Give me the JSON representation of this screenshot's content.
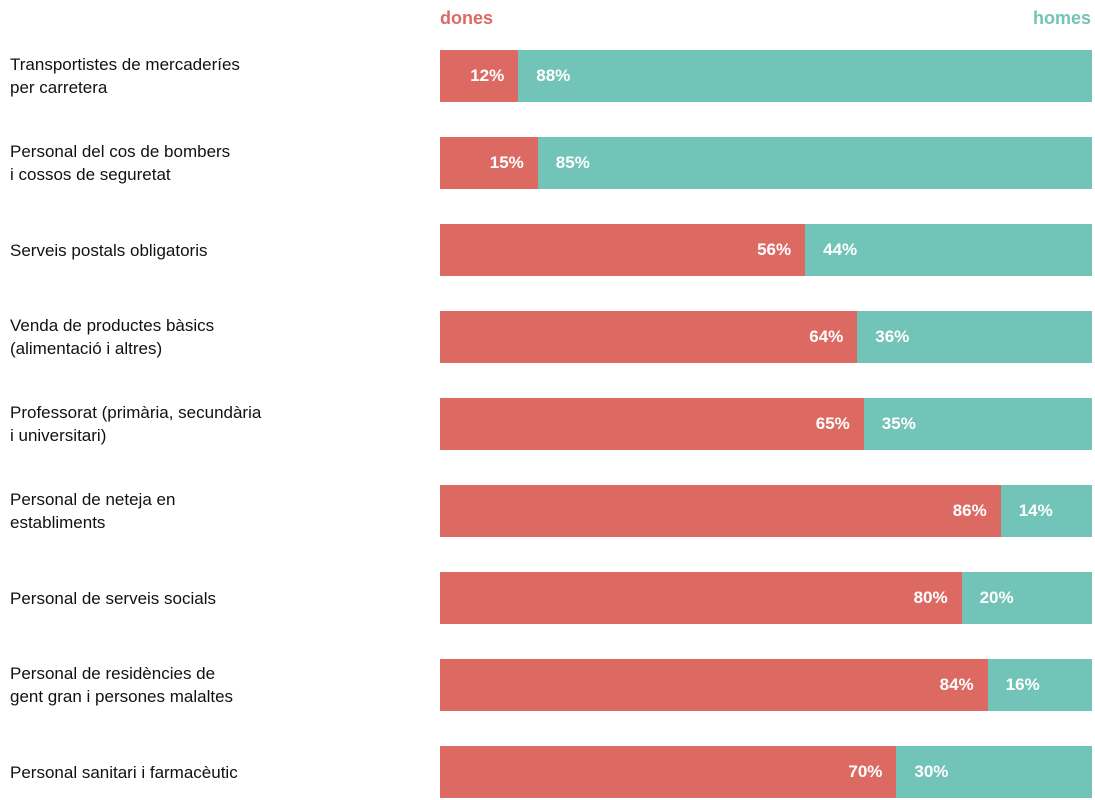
{
  "chart_data": {
    "type": "bar",
    "orientation": "horizontal",
    "stacked": true,
    "categories": [
      "Transportistes de mercaderíes\nper carretera",
      "Personal del cos de bombers\ni cossos de seguretat",
      "Serveis postals obligatoris",
      "Venda de productes bàsics\n(alimentació i altres)",
      "Professorat (primària, secundària\ni universitari)",
      "Personal de neteja en\nestabliments",
      "Personal de serveis socials",
      "Personal de residències de\ngent gran i persones malaltes",
      "Personal sanitari i farmacèutic"
    ],
    "xlim": [
      0,
      100
    ],
    "series": [
      {
        "name": "dones",
        "color": "#dc6a63",
        "values": [
          12,
          15,
          56,
          64,
          65,
          86,
          80,
          84,
          70
        ],
        "value_labels": [
          "12%",
          "15%",
          "56%",
          "64%",
          "65%",
          "86%",
          "80%",
          "84%",
          "70%"
        ]
      },
      {
        "name": "homes",
        "color": "#72c3b8",
        "values": [
          88,
          85,
          44,
          36,
          35,
          14,
          20,
          16,
          30
        ],
        "value_labels": [
          "88%",
          "85%",
          "44%",
          "36%",
          "35%",
          "14%",
          "20%",
          "16%",
          "30%"
        ]
      }
    ]
  }
}
